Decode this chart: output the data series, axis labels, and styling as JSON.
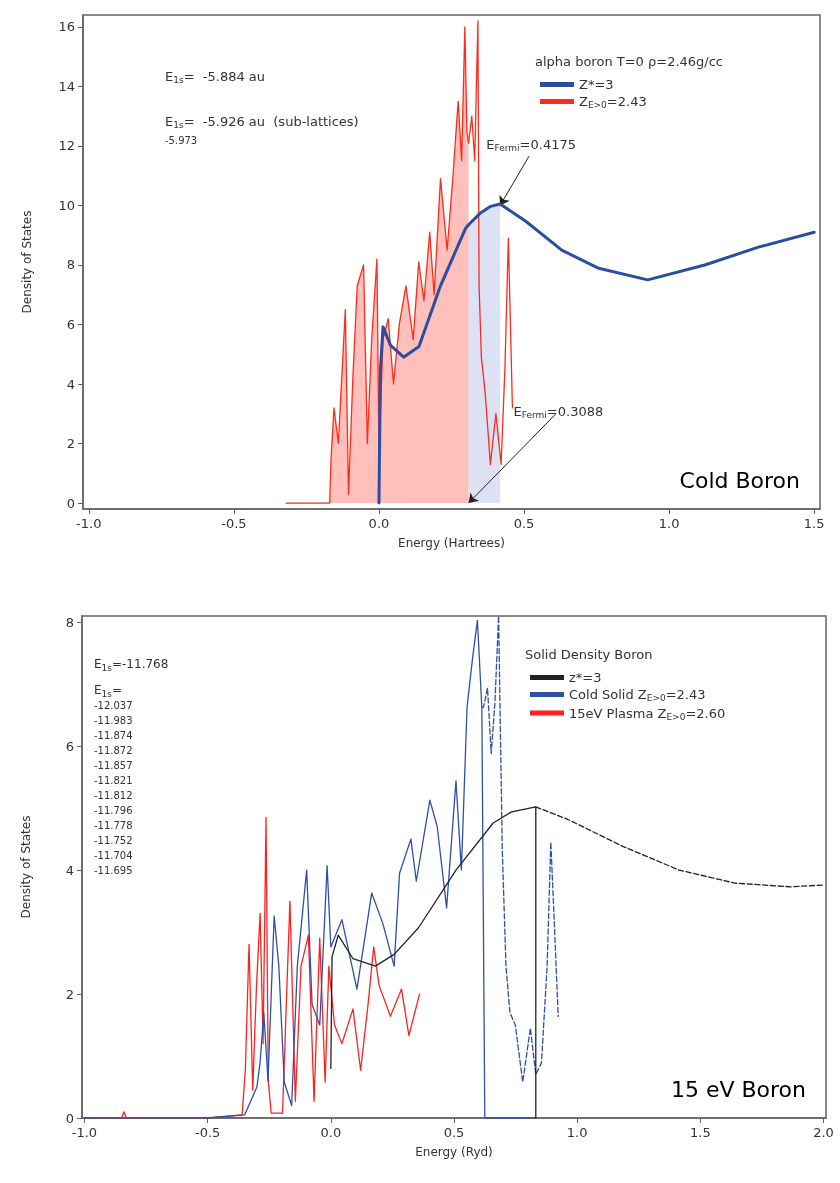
{
  "chart_data": [
    {
      "type": "line",
      "xlabel": "Energy (Hartrees)",
      "ylabel": "Density of States",
      "legend": "top right",
      "legend_title": "alpha boron T=0 ρ=2.46g/cc",
      "xlim": [
        -1.02,
        1.52
      ],
      "xticks": [
        {
          "value": -1,
          "label": "-1.0"
        },
        -0.5,
        {
          "value": 0,
          "label": "0.0"
        },
        0.5,
        {
          "value": 1,
          "label": "1.0"
        },
        1.5
      ],
      "ylim": [
        -0.2,
        16.4
      ],
      "yticks": [
        0,
        2,
        4,
        6,
        8,
        10,
        12,
        14,
        16
      ],
      "series": [
        {
          "name": "Z*=3",
          "type": "line",
          "color": "#2b4fa0",
          "x": [
            0,
            0.005,
            0.014,
            0.04,
            0.085,
            0.138,
            0.212,
            0.298,
            0.3088,
            0.35,
            0.385,
            0.4175,
            0.507,
            0.63,
            0.754,
            0.926,
            1.123,
            1.308,
            1.5
          ],
          "values": [
            0,
            4.5,
            5.92,
            5.3,
            4.9,
            5.26,
            7.3,
            9.22,
            9.35,
            9.75,
            9.97,
            10.05,
            9.46,
            8.5,
            7.9,
            7.5,
            8.0,
            8.6,
            9.1
          ]
        },
        {
          "name": "Z$_{E>0}$=2.43",
          "type": "area",
          "color": "#ff2a1a",
          "x": [
            -0.32,
            -0.17,
            -0.165,
            -0.155,
            -0.14,
            -0.116,
            -0.105,
            -0.09,
            -0.075,
            -0.053,
            -0.04,
            -0.025,
            -0.007,
            0,
            0.014,
            0.032,
            0.05,
            0.07,
            0.093,
            0.118,
            0.137,
            0.155,
            0.175,
            0.19,
            0.212,
            0.235,
            0.255,
            0.273,
            0.285,
            0.296,
            0.303,
            0.3088
          ],
          "values": [
            0,
            0,
            1.5,
            3.2,
            2.0,
            6.5,
            0.3,
            4.2,
            7.3,
            8.0,
            2.0,
            5.5,
            8.2,
            1.7,
            5.5,
            6.2,
            4.0,
            6.0,
            7.3,
            5.5,
            8.1,
            6.8,
            9.1,
            7.0,
            10.9,
            8.5,
            11.0,
            13.5,
            11.5,
            16.0,
            12.5,
            12.1
          ]
        },
        {
          "type": "line",
          "color": "#ff2a1a",
          "x": [
            0.3088,
            0.32,
            0.33,
            0.341,
            0.345,
            0.353,
            0.366,
            0.384,
            0.403,
            0.421,
            0.434,
            0.446,
            0.46
          ],
          "values": [
            12.1,
            13.0,
            11.5,
            16.2,
            7.3,
            4.9,
            3.7,
            1.3,
            3.0,
            1.3,
            4.5,
            8.9,
            3.2
          ]
        },
        {
          "type": "area",
          "color": "#8a9fdc",
          "x": [
            0.3088,
            0.35,
            0.385,
            0.4175
          ],
          "values": [
            9.35,
            9.75,
            9.97,
            10.05
          ]
        }
      ],
      "annotations": [
        "E$_{1s}$=  -5.884 au",
        "E$_{1s}$=  -5.926 au  (sub-lattices)",
        "-5.973",
        {
          "text": "E$_{Fermi}$=0.4175",
          "x": 0.4175,
          "y": 10
        },
        {
          "text": "E$_{Fermi}$=0.3088",
          "x": 0.3088,
          "y": 0
        },
        "Cold Boron"
      ]
    },
    {
      "type": "line",
      "xlabel": "Energy (Ryd)",
      "ylabel": "Density of States",
      "legend": "top right",
      "legend_title": "Solid Density Boron",
      "xlim": [
        -1.01,
        2.01
      ],
      "xticks": [
        {
          "value": -1,
          "label": "-1.0"
        },
        -0.5,
        {
          "value": 0,
          "label": "0.0"
        },
        0.5,
        {
          "value": 1,
          "label": "1.0"
        },
        1.5,
        {
          "value": 2,
          "label": "2.0"
        }
      ],
      "ylim": [
        0,
        8.1
      ],
      "yticks": [
        0,
        2,
        4,
        6,
        8
      ],
      "series": [
        {
          "name": "z*=3",
          "type": "line",
          "color": "#222222",
          "x": [
            0,
            0.005,
            0.03,
            0.09,
            0.181,
            0.257,
            0.356,
            0.508,
            0.659,
            0.734,
            0.832,
            0.832
          ],
          "values": [
            0.8,
            2.6,
            2.95,
            2.57,
            2.45,
            2.64,
            3.07,
            4.0,
            4.76,
            4.94,
            5.02,
            0
          ]
        },
        {
          "type": "line",
          "line_style": "dashed",
          "color": "#222222",
          "x": [
            0.832,
            0.961,
            1.187,
            1.414,
            1.64,
            1.867,
            2.0
          ],
          "values": [
            5.02,
            4.82,
            4.38,
            4.0,
            3.79,
            3.73,
            3.76
          ]
        },
        {
          "name": "Cold Solid Z$_{E>0}$=2.43",
          "type": "line",
          "color": "#3050a8",
          "x": [
            -1,
            -0.5,
            -0.35,
            -0.3,
            -0.287,
            -0.272,
            -0.255,
            -0.23,
            -0.211,
            -0.189,
            -0.159,
            -0.136,
            -0.098,
            -0.076,
            -0.045,
            -0.015,
            0,
            0.045,
            0.106,
            0.166,
            0.211,
            0.257,
            0.279,
            0.325,
            0.347,
            0.402,
            0.432,
            0.47,
            0.508,
            0.53,
            0.553,
            0.576,
            0.595,
            0.613,
            0.625,
            0.832
          ],
          "values": [
            0,
            0,
            0.05,
            0.5,
            0.9,
            1.7,
            0.6,
            3.26,
            2.45,
            0.58,
            0.2,
            2.45,
            4.0,
            1.83,
            1.5,
            4.07,
            2.76,
            3.2,
            2.08,
            3.63,
            3.14,
            2.45,
            3.95,
            4.5,
            3.82,
            5.13,
            4.7,
            3.39,
            5.44,
            4.0,
            6.63,
            7.44,
            8.03,
            6.63,
            0,
            0
          ]
        },
        {
          "type": "line",
          "line_style": "dashed",
          "color": "#3050a8",
          "x": [
            0.613,
            0.62,
            0.636,
            0.651,
            0.666,
            0.681,
            0.696,
            0.711,
            0.727,
            0.749,
            0.779,
            0.81,
            0.832,
            0.855,
            0.878,
            0.893,
            0.908,
            0.923
          ],
          "values": [
            6.63,
            6.63,
            6.94,
            5.88,
            6.69,
            8.1,
            4.32,
            2.45,
            1.7,
            1.5,
            0.58,
            1.45,
            0.7,
            0.89,
            2.45,
            4.45,
            3.07,
            1.64
          ]
        },
        {
          "name": "15eV Plasma Z$_{E>0}$=2.60",
          "type": "line",
          "color": "#ff2020",
          "x": [
            -1,
            -0.85,
            -0.84,
            -0.83,
            -0.5,
            -0.36,
            -0.347,
            -0.332,
            -0.317,
            -0.302,
            -0.287,
            -0.275,
            -0.263,
            -0.254,
            -0.242,
            -0.196,
            -0.181,
            -0.166,
            -0.144,
            -0.121,
            -0.091,
            -0.068,
            -0.045,
            -0.023,
            -0.008,
            0.015,
            0.045,
            0.09,
            0.121,
            0.151,
            0.174,
            0.196,
            0.242,
            0.287,
            0.317,
            0.36
          ],
          "values": [
            0,
            0,
            0.1,
            0,
            0,
            0.05,
            0.77,
            2.8,
            0.45,
            2.1,
            3.3,
            1.2,
            4.85,
            0.6,
            0.08,
            0.08,
            1.8,
            3.5,
            0.27,
            2.45,
            2.95,
            0.27,
            2.9,
            0.58,
            2.45,
            1.5,
            1.2,
            1.76,
            0.77,
            1.83,
            2.76,
            2.14,
            1.64,
            2.08,
            1.33,
            2.0
          ]
        }
      ],
      "annotations": [
        "E$_{1s}$=-11.768",
        "E$_{1s}$=",
        "-12.037",
        "-11.983",
        "-11.874",
        "-11.872",
        "-11.857",
        "-11.821",
        "-11.812",
        "-11.796",
        "-11.778",
        "-11.752",
        "-11.704",
        "-11.695",
        "15 eV Boron"
      ]
    }
  ]
}
